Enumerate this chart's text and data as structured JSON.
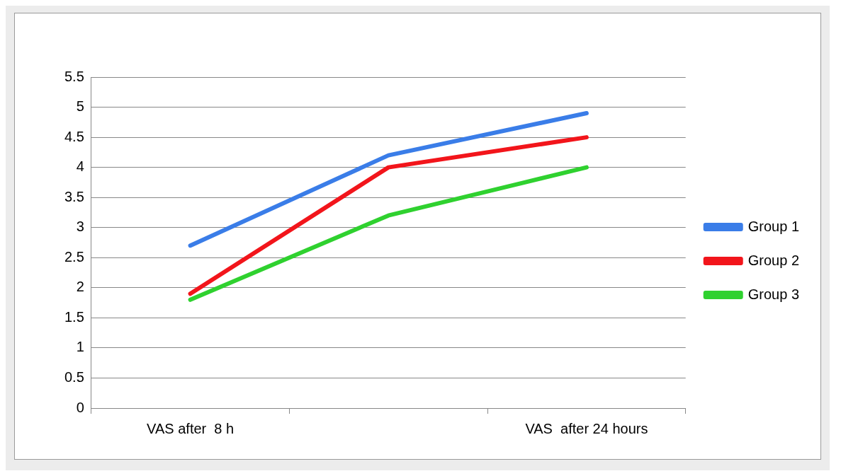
{
  "chart_data": {
    "type": "line",
    "categories": [
      "VAS after  8 h",
      null,
      "VAS  after 24 hours"
    ],
    "series": [
      {
        "name": "Group 1",
        "color": "#3a7de8",
        "values": [
          2.7,
          4.2,
          4.9
        ]
      },
      {
        "name": "Group 2",
        "color": "#f2151b",
        "values": [
          1.9,
          4.0,
          4.5
        ]
      },
      {
        "name": "Group 3",
        "color": "#2fd12f",
        "values": [
          1.8,
          3.2,
          4.0
        ]
      }
    ],
    "ylim": [
      0,
      5.5
    ],
    "yticks": [
      0,
      0.5,
      1,
      1.5,
      2,
      2.5,
      3,
      3.5,
      4,
      4.5,
      5,
      5.5
    ],
    "grid": "y",
    "legend": "right",
    "marker": "none",
    "line_style": "solid"
  }
}
